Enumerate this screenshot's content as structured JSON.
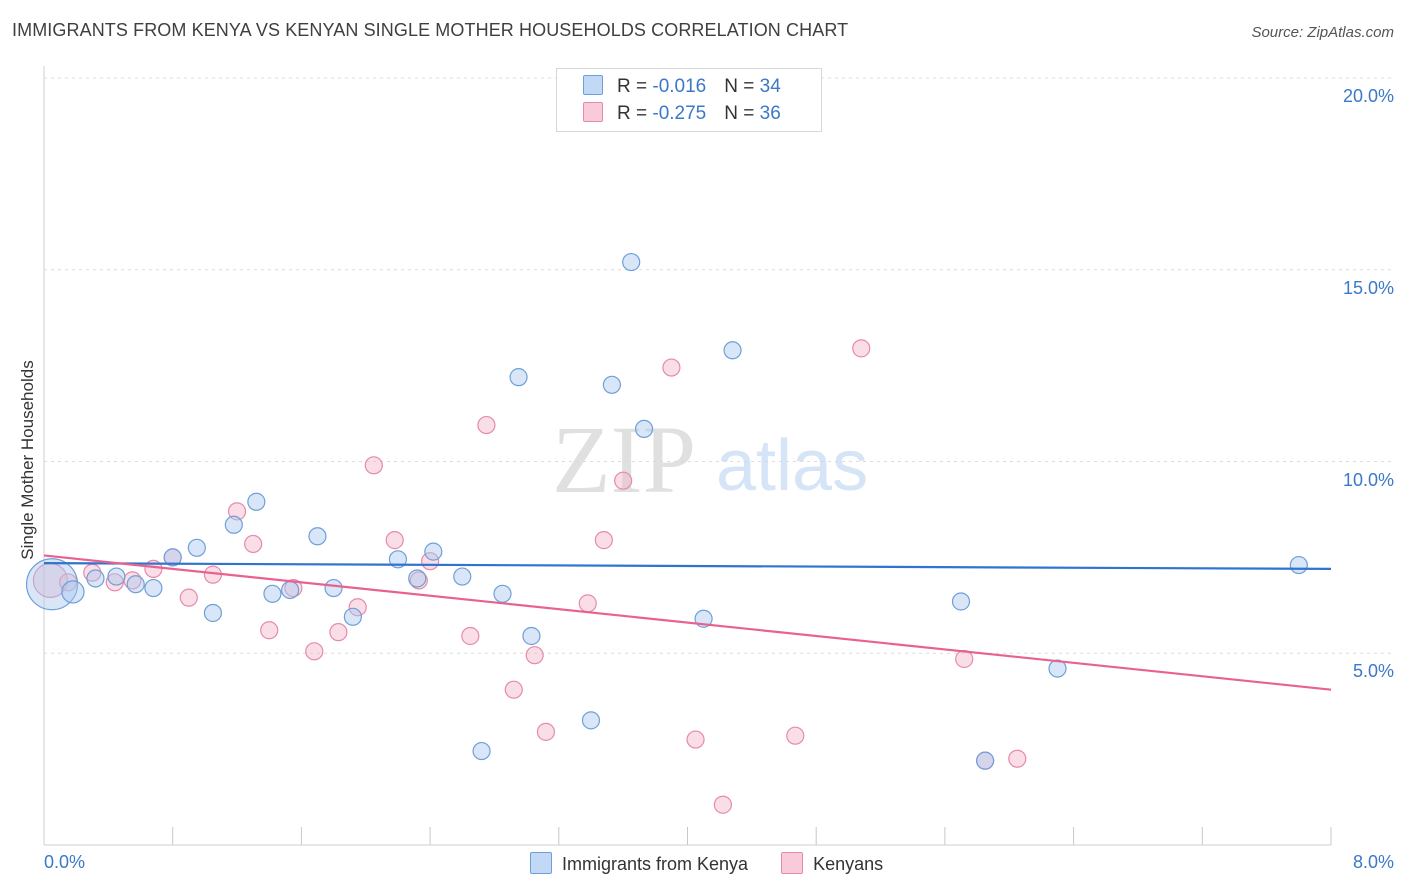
{
  "title": "IMMIGRANTS FROM KENYA VS KENYAN SINGLE MOTHER HOUSEHOLDS CORRELATION CHART",
  "source": "Source: ZipAtlas.com",
  "watermark": {
    "zip": "ZIP",
    "atlas": "atlas"
  },
  "legend": {
    "rows": [
      {
        "r_label": "R = ",
        "r_value": "-0.016",
        "n_label": "N = ",
        "n_value": "34"
      },
      {
        "r_label": "R = ",
        "r_value": "-0.275",
        "n_label": "N = ",
        "n_value": "36"
      }
    ]
  },
  "chart_data": {
    "type": "scatter",
    "title": "IMMIGRANTS FROM KENYA VS KENYAN SINGLE MOTHER HOUSEHOLDS CORRELATION CHART",
    "xlabel": "",
    "ylabel": "Single Mother Households",
    "xlim": [
      0,
      8
    ],
    "ylim": [
      0,
      20
    ],
    "x_tick_labels": [
      "0.0%",
      "8.0%"
    ],
    "y_tick_labels": [
      "5.0%",
      "10.0%",
      "15.0%",
      "20.0%"
    ],
    "y_ticks": [
      5,
      10,
      15,
      20
    ],
    "grid": true,
    "legend_position": "bottom-center",
    "series": [
      {
        "name": "Immigrants from Kenya",
        "color": "#a9c8f0",
        "stroke": "#6f9fd8",
        "line_color": "#2f74d0",
        "trend": [
          7.35,
          7.2
        ],
        "points": [
          [
            0.05,
            6.8,
            3
          ],
          [
            0.18,
            6.6,
            1.3
          ],
          [
            0.32,
            6.95,
            1
          ],
          [
            0.45,
            7.0,
            1
          ],
          [
            0.57,
            6.8,
            1
          ],
          [
            0.68,
            6.7,
            1
          ],
          [
            0.8,
            7.5,
            1
          ],
          [
            0.95,
            7.75,
            1
          ],
          [
            1.05,
            6.05,
            1
          ],
          [
            1.18,
            8.35,
            1
          ],
          [
            1.32,
            8.95,
            1
          ],
          [
            1.42,
            6.55,
            1
          ],
          [
            1.53,
            6.65,
            1
          ],
          [
            1.7,
            8.05,
            1
          ],
          [
            1.8,
            6.7,
            1
          ],
          [
            1.92,
            5.95,
            1
          ],
          [
            2.2,
            7.45,
            1
          ],
          [
            2.32,
            6.95,
            1
          ],
          [
            2.42,
            7.65,
            1
          ],
          [
            2.6,
            7.0,
            1
          ],
          [
            2.72,
            2.45,
            1
          ],
          [
            2.85,
            6.55,
            1
          ],
          [
            2.95,
            12.2,
            1
          ],
          [
            3.03,
            5.45,
            1
          ],
          [
            3.4,
            3.25,
            1
          ],
          [
            3.53,
            12.0,
            1
          ],
          [
            3.65,
            15.2,
            1
          ],
          [
            3.73,
            10.85,
            1
          ],
          [
            4.1,
            5.9,
            1
          ],
          [
            4.28,
            12.9,
            1
          ],
          [
            5.7,
            6.35,
            1
          ],
          [
            5.85,
            2.2,
            1
          ],
          [
            6.3,
            4.6,
            1
          ],
          [
            7.8,
            7.3,
            1
          ]
        ]
      },
      {
        "name": "Kenyans",
        "color": "#f4b6ca",
        "stroke": "#e68aaa",
        "line_color": "#e8628f",
        "trend": [
          7.55,
          4.05
        ],
        "points": [
          [
            0.04,
            6.9,
            2
          ],
          [
            0.15,
            6.85,
            1
          ],
          [
            0.3,
            7.1,
            1
          ],
          [
            0.44,
            6.85,
            1
          ],
          [
            0.55,
            6.9,
            1
          ],
          [
            0.68,
            7.2,
            1
          ],
          [
            0.8,
            7.5,
            1
          ],
          [
            0.9,
            6.45,
            1
          ],
          [
            1.05,
            7.05,
            1
          ],
          [
            1.2,
            8.7,
            1
          ],
          [
            1.3,
            7.85,
            1
          ],
          [
            1.4,
            5.6,
            1
          ],
          [
            1.55,
            6.7,
            1
          ],
          [
            1.68,
            5.05,
            1
          ],
          [
            1.83,
            5.55,
            1
          ],
          [
            1.95,
            6.2,
            1
          ],
          [
            2.05,
            9.9,
            1
          ],
          [
            2.18,
            7.95,
            1
          ],
          [
            2.33,
            6.9,
            1
          ],
          [
            2.4,
            7.4,
            1
          ],
          [
            2.65,
            5.45,
            1
          ],
          [
            2.75,
            10.95,
            1
          ],
          [
            2.92,
            4.05,
            1
          ],
          [
            3.05,
            4.95,
            1
          ],
          [
            3.12,
            2.95,
            1
          ],
          [
            3.38,
            6.3,
            1
          ],
          [
            3.48,
            7.95,
            1
          ],
          [
            3.6,
            9.5,
            1
          ],
          [
            3.9,
            12.45,
            1
          ],
          [
            4.05,
            2.75,
            1
          ],
          [
            4.22,
            1.05,
            1
          ],
          [
            4.67,
            2.85,
            1
          ],
          [
            5.08,
            12.95,
            1
          ],
          [
            5.72,
            4.85,
            1
          ],
          [
            5.85,
            2.2,
            1
          ],
          [
            6.05,
            2.25,
            1
          ]
        ]
      }
    ]
  }
}
